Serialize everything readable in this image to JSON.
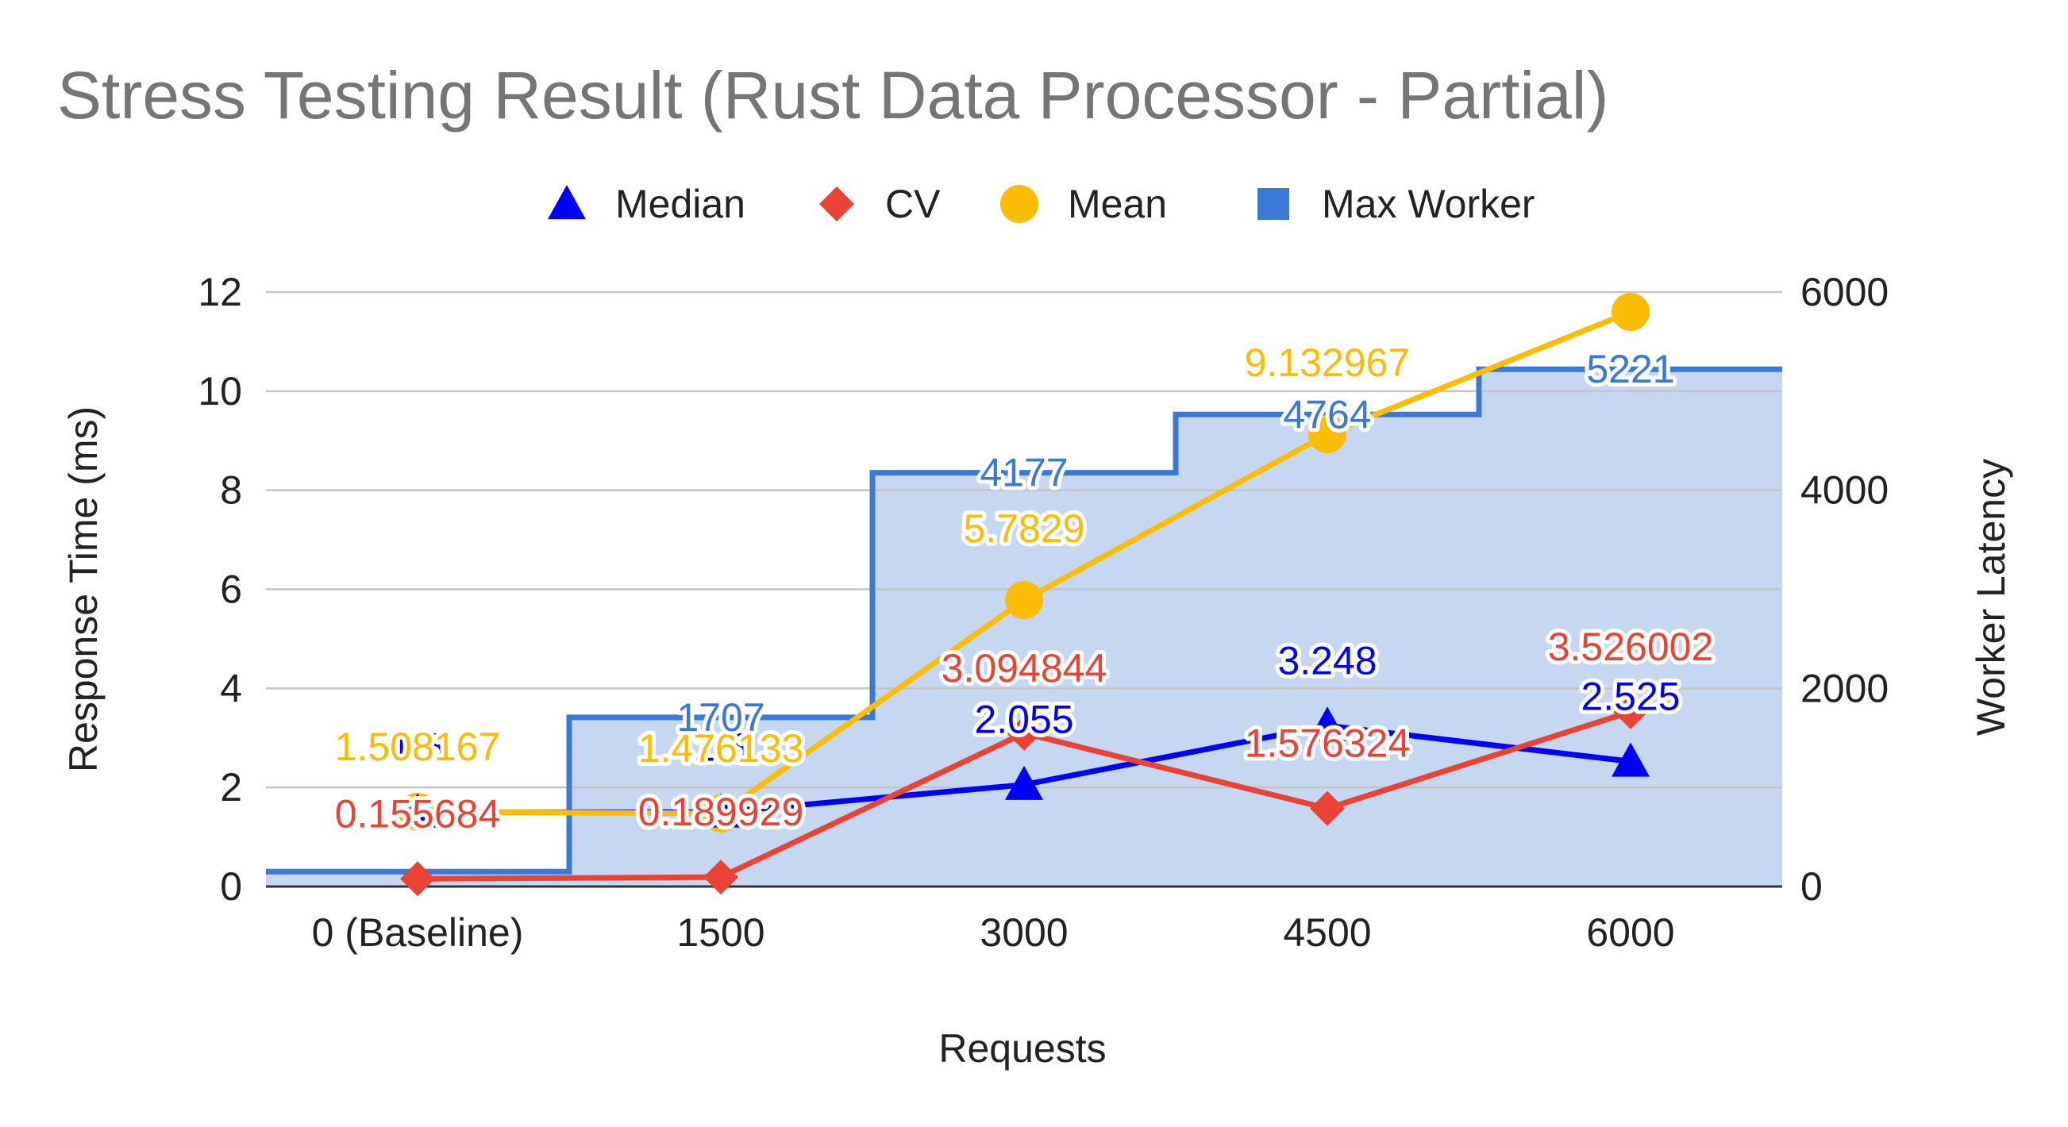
{
  "chart_data": {
    "type": "line",
    "title": "Stress Testing Result (Rust Data Processor - Partial)",
    "xlabel": "Requests",
    "ylabel": "Response Time (ms)",
    "y2label": "Worker Latency",
    "categories": [
      "0 (Baseline)",
      "1500",
      "3000",
      "4500",
      "6000"
    ],
    "ylim": [
      0,
      12
    ],
    "yticks": [
      0,
      2,
      4,
      6,
      8,
      10,
      12
    ],
    "y2lim": [
      0,
      6000
    ],
    "y2ticks": [
      0,
      2000,
      4000,
      6000
    ],
    "grid": true,
    "legend_position": "top",
    "series": [
      {
        "name": "Median",
        "type": "line",
        "marker": "triangle",
        "color": "#0000ff",
        "axis": "left",
        "values": [
          1.5,
          1.5,
          2.055,
          3.248,
          2.525
        ],
        "labels": [
          "1.5",
          "1.5",
          "2.055",
          "3.248",
          "2.525"
        ]
      },
      {
        "name": "CV",
        "type": "line",
        "marker": "diamond",
        "color": "#ea4335",
        "axis": "left",
        "values": [
          0.155684,
          0.189929,
          3.094844,
          1.576324,
          3.526002
        ],
        "labels": [
          "0.155684",
          "0.189929",
          "3.094844",
          "1.576324",
          "3.526002"
        ]
      },
      {
        "name": "Mean",
        "type": "line",
        "marker": "circle",
        "color": "#fbbc04",
        "axis": "left",
        "values": [
          1.508167,
          1.476133,
          5.7829,
          9.132967,
          11.6
        ],
        "labels": [
          "1.508167",
          "1.476133",
          "5.7829",
          "9.132967",
          ""
        ]
      },
      {
        "name": "Max Worker",
        "type": "stepped-area",
        "marker": "square",
        "color": "#3c78d8",
        "axis": "right",
        "values": [
          150,
          1707,
          4177,
          4764,
          5221
        ],
        "labels": [
          "",
          "1707",
          "4177",
          "4764",
          "5221"
        ]
      }
    ]
  }
}
